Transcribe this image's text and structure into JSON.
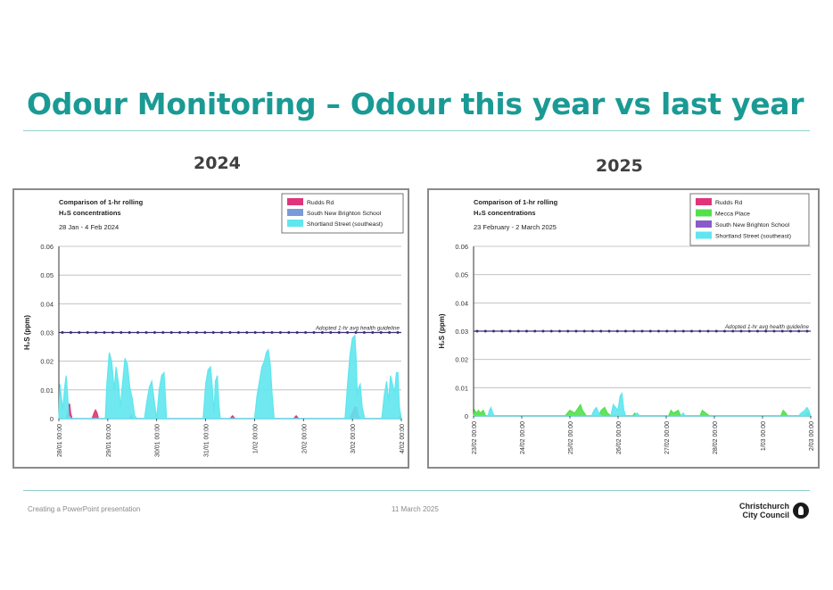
{
  "slide": {
    "title": "Odour Monitoring – Odour this year vs last year",
    "year_left": "2024",
    "year_right": "2025",
    "footer_left": "Creating a PowerPoint presentation",
    "footer_date": "11 March 2025",
    "logo_line1": "Christchurch",
    "logo_line2": "City Council",
    "accent_color": "#1a9a94"
  },
  "chart_data": [
    {
      "type": "area",
      "title_line1": "Comparison of 1-hr rolling",
      "title_line2": "H₂S concentrations",
      "subtitle": "28 Jan - 4 Feb 2024",
      "ylabel": "H₂S (ppm)",
      "ylim": [
        0,
        0.06
      ],
      "yticks": [
        0,
        0.01,
        0.02,
        0.03,
        0.04,
        0.05,
        0.06
      ],
      "ytick_labels": [
        "0",
        "0.01",
        "0.02",
        "0.03",
        "0.04",
        "0.05",
        "0.06"
      ],
      "xlim": [
        0,
        7
      ],
      "x_unit": "days from 28/01 00:00",
      "xtick_labels": [
        "28/01 00:00",
        "29/01 00:00",
        "30/01 00:00",
        "31/01 00:00",
        "1/02 00:00",
        "2/02 00:00",
        "3/02 00:00",
        "4/02 00:00"
      ],
      "guideline": {
        "value": 0.03,
        "label": "Adopted 1-hr avg health guideline",
        "color": "#3a2f7a"
      },
      "legend_position": "top-right",
      "grid": true,
      "series": [
        {
          "name": "Rudds Rd",
          "color": "#e0357a",
          "points": [
            [
              0,
              0
            ],
            [
              0.15,
              0
            ],
            [
              0.18,
              0.002
            ],
            [
              0.2,
              0.005
            ],
            [
              0.22,
              0.005
            ],
            [
              0.24,
              0.002
            ],
            [
              0.27,
              0
            ],
            [
              0.68,
              0
            ],
            [
              0.72,
              0.002
            ],
            [
              0.75,
              0.003
            ],
            [
              0.78,
              0.002
            ],
            [
              0.81,
              0
            ],
            [
              1.45,
              0
            ],
            [
              1.48,
              0.001
            ],
            [
              1.5,
              0
            ],
            [
              3.5,
              0
            ],
            [
              3.55,
              0.001
            ],
            [
              3.6,
              0
            ],
            [
              4.8,
              0
            ],
            [
              4.85,
              0.001
            ],
            [
              4.9,
              0
            ],
            [
              5.95,
              0
            ],
            [
              6,
              0.002
            ],
            [
              6.05,
              0.004
            ],
            [
              6.08,
              0.004
            ],
            [
              6.12,
              0.001
            ],
            [
              6.15,
              0
            ],
            [
              6.95,
              0
            ],
            [
              6.98,
              0.001
            ],
            [
              7,
              0
            ]
          ]
        },
        {
          "name": "South New Brighton School",
          "color": "#7a9bd8",
          "points": [
            [
              0,
              0
            ],
            [
              7,
              0
            ]
          ]
        },
        {
          "name": "Shortland Street (southeast)",
          "color": "#5fe6ee",
          "points": [
            [
              0,
              0
            ],
            [
              0.02,
              0.012
            ],
            [
              0.05,
              0.008
            ],
            [
              0.08,
              0.003
            ],
            [
              0.12,
              0.011
            ],
            [
              0.15,
              0.015
            ],
            [
              0.18,
              0.008
            ],
            [
              0.2,
              0.001
            ],
            [
              0.25,
              0
            ],
            [
              0.95,
              0
            ],
            [
              0.98,
              0.012
            ],
            [
              1.03,
              0.023
            ],
            [
              1.08,
              0.02
            ],
            [
              1.13,
              0.01
            ],
            [
              1.17,
              0.018
            ],
            [
              1.22,
              0.012
            ],
            [
              1.26,
              0.004
            ],
            [
              1.3,
              0.012
            ],
            [
              1.35,
              0.021
            ],
            [
              1.4,
              0.019
            ],
            [
              1.45,
              0.011
            ],
            [
              1.5,
              0.007
            ],
            [
              1.55,
              0.001
            ],
            [
              1.6,
              0
            ],
            [
              1.75,
              0
            ],
            [
              1.8,
              0.006
            ],
            [
              1.85,
              0.011
            ],
            [
              1.9,
              0.013
            ],
            [
              1.95,
              0.006
            ],
            [
              2.0,
              0
            ],
            [
              2.05,
              0.01
            ],
            [
              2.1,
              0.015
            ],
            [
              2.15,
              0.016
            ],
            [
              2.18,
              0.007
            ],
            [
              2.2,
              0
            ],
            [
              2.95,
              0
            ],
            [
              3.0,
              0.012
            ],
            [
              3.05,
              0.017
            ],
            [
              3.1,
              0.018
            ],
            [
              3.14,
              0.01
            ],
            [
              3.17,
              0.002
            ],
            [
              3.2,
              0.013
            ],
            [
              3.24,
              0.015
            ],
            [
              3.27,
              0.005
            ],
            [
              3.3,
              0
            ],
            [
              4.0,
              0
            ],
            [
              4.05,
              0.008
            ],
            [
              4.1,
              0.013
            ],
            [
              4.15,
              0.018
            ],
            [
              4.2,
              0.02
            ],
            [
              4.24,
              0.023
            ],
            [
              4.28,
              0.024
            ],
            [
              4.32,
              0.019
            ],
            [
              4.36,
              0.008
            ],
            [
              4.4,
              0
            ],
            [
              5.85,
              0
            ],
            [
              5.9,
              0.012
            ],
            [
              5.95,
              0.022
            ],
            [
              6.0,
              0.028
            ],
            [
              6.05,
              0.029
            ],
            [
              6.08,
              0.02
            ],
            [
              6.1,
              0.008
            ],
            [
              6.13,
              0.011
            ],
            [
              6.16,
              0.012
            ],
            [
              6.2,
              0.004
            ],
            [
              6.25,
              0
            ],
            [
              6.6,
              0
            ],
            [
              6.65,
              0.008
            ],
            [
              6.7,
              0.013
            ],
            [
              6.74,
              0.006
            ],
            [
              6.78,
              0.015
            ],
            [
              6.82,
              0.012
            ],
            [
              6.86,
              0.009
            ],
            [
              6.9,
              0.016
            ],
            [
              6.93,
              0.016
            ],
            [
              6.96,
              0.004
            ],
            [
              7,
              0
            ]
          ]
        }
      ]
    },
    {
      "type": "area",
      "title_line1": "Comparison of 1-hr rolling",
      "title_line2": "H₂S concentrations",
      "subtitle": "23 February - 2 March 2025",
      "ylabel": "H₂S (ppm)",
      "ylim": [
        0,
        0.06
      ],
      "yticks": [
        0,
        0.01,
        0.02,
        0.03,
        0.04,
        0.05,
        0.06
      ],
      "ytick_labels": [
        "0",
        "0.01",
        "0.02",
        "0.03",
        "0.04",
        "0.05",
        "0.06"
      ],
      "xlim": [
        0,
        7
      ],
      "x_unit": "days from 23/02 00:00",
      "xtick_labels": [
        "23/02 00:00",
        "24/02 00:00",
        "25/02 00:00",
        "26/02 00:00",
        "27/02 00:00",
        "28/02 00:00",
        "1/03 00:00",
        "2/03 00:00"
      ],
      "guideline": {
        "value": 0.03,
        "label": "Adopted 1-hr avg health guideline",
        "color": "#3a2f7a"
      },
      "legend_position": "top-right",
      "grid": true,
      "series": [
        {
          "name": "Rudds Rd",
          "color": "#e0357a",
          "points": [
            [
              0,
              0
            ],
            [
              7,
              0
            ]
          ]
        },
        {
          "name": "Mecca Place",
          "color": "#52e04d",
          "points": [
            [
              0,
              0
            ],
            [
              0.02,
              0.002
            ],
            [
              0.06,
              0.001
            ],
            [
              0.1,
              0.002
            ],
            [
              0.14,
              0.001
            ],
            [
              0.2,
              0.002
            ],
            [
              0.25,
              0
            ],
            [
              1.9,
              0
            ],
            [
              1.95,
              0.001
            ],
            [
              2.0,
              0.002
            ],
            [
              2.1,
              0.001
            ],
            [
              2.18,
              0.003
            ],
            [
              2.22,
              0.004
            ],
            [
              2.26,
              0.002
            ],
            [
              2.3,
              0.001
            ],
            [
              2.34,
              0
            ],
            [
              2.6,
              0
            ],
            [
              2.65,
              0.002
            ],
            [
              2.72,
              0.003
            ],
            [
              2.78,
              0.001
            ],
            [
              2.85,
              0
            ],
            [
              3.3,
              0
            ],
            [
              3.35,
              0.001
            ],
            [
              3.4,
              0
            ],
            [
              4.05,
              0
            ],
            [
              4.1,
              0.002
            ],
            [
              4.15,
              0.001
            ],
            [
              4.25,
              0.002
            ],
            [
              4.3,
              0
            ],
            [
              4.7,
              0
            ],
            [
              4.75,
              0.002
            ],
            [
              4.82,
              0.001
            ],
            [
              4.9,
              0
            ],
            [
              6.38,
              0
            ],
            [
              6.43,
              0.002
            ],
            [
              6.48,
              0.001
            ],
            [
              6.52,
              0
            ],
            [
              6.88,
              0
            ],
            [
              6.92,
              0.001
            ],
            [
              6.96,
              0.001
            ],
            [
              7,
              0
            ]
          ]
        },
        {
          "name": "South New Brighton School",
          "color": "#8a5cc9",
          "points": [
            [
              0,
              0
            ],
            [
              7,
              0
            ]
          ]
        },
        {
          "name": "Shortland Street (southeast)",
          "color": "#5fe6ee",
          "points": [
            [
              0,
              0
            ],
            [
              0.3,
              0
            ],
            [
              0.33,
              0.002
            ],
            [
              0.36,
              0.003
            ],
            [
              0.4,
              0.001
            ],
            [
              0.43,
              0
            ],
            [
              2.45,
              0
            ],
            [
              2.5,
              0.002
            ],
            [
              2.55,
              0.003
            ],
            [
              2.6,
              0.001
            ],
            [
              2.65,
              0
            ],
            [
              2.85,
              0
            ],
            [
              2.9,
              0.004
            ],
            [
              2.95,
              0.003
            ],
            [
              3.0,
              0.002
            ],
            [
              3.04,
              0.007
            ],
            [
              3.08,
              0.008
            ],
            [
              3.12,
              0.002
            ],
            [
              3.16,
              0
            ],
            [
              3.35,
              0
            ],
            [
              3.4,
              0.001
            ],
            [
              3.45,
              0
            ],
            [
              4.3,
              0
            ],
            [
              4.35,
              0.001
            ],
            [
              4.4,
              0
            ],
            [
              6.75,
              0
            ],
            [
              6.8,
              0.001
            ],
            [
              6.88,
              0.002
            ],
            [
              6.92,
              0.003
            ],
            [
              6.96,
              0.002
            ],
            [
              7,
              0
            ]
          ]
        }
      ]
    }
  ]
}
